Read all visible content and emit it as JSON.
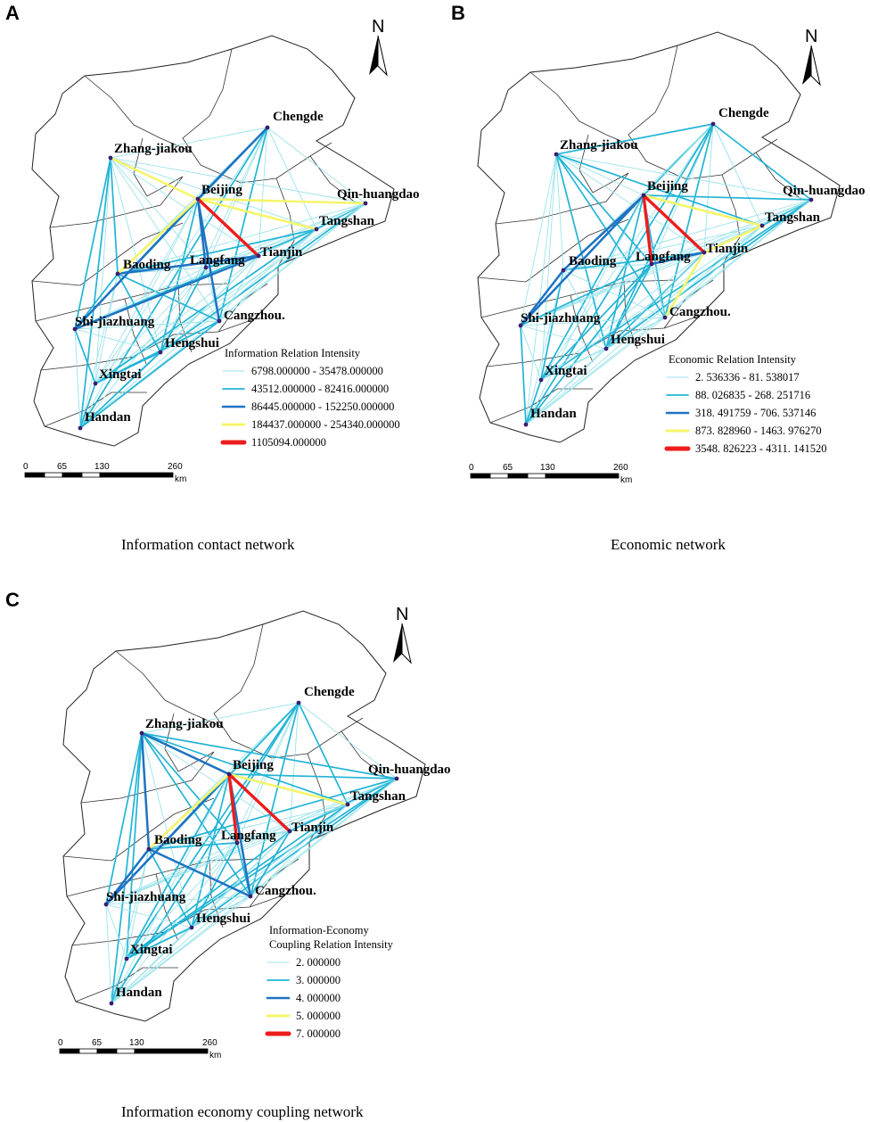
{
  "panels": [
    {
      "letter": "A",
      "caption": "Information contact network",
      "legend_title": [
        "Information Relation Intensity"
      ],
      "legend": [
        {
          "label": "6798.000000 - 35478.000000",
          "color": "#9be3ec"
        },
        {
          "label": "43512.000000 - 82416.000000",
          "color": "#22b4d6"
        },
        {
          "label": "86445.000000 - 152250.000000",
          "color": "#1f73c2"
        },
        {
          "label": "184437.000000 - 254340.000000",
          "color": "#f5f56a"
        },
        {
          "label": "1105094.000000",
          "color": "#ee1c1c"
        }
      ]
    },
    {
      "letter": "B",
      "caption": "Economic network",
      "legend_title": [
        "Economic  Relation Intensity"
      ],
      "legend": [
        {
          "label": "2. 536336  -  81. 538017",
          "color": "#9be3ec"
        },
        {
          "label": "88. 026835  -  268. 251716",
          "color": "#22b4d6"
        },
        {
          "label": "318. 491759  -  706. 537146",
          "color": "#1f73c2"
        },
        {
          "label": "873. 828960  -  1463. 976270",
          "color": "#f5f56a"
        },
        {
          "label": "3548. 826223  -  4311. 141520",
          "color": "#ee1c1c"
        }
      ]
    },
    {
      "letter": "C",
      "caption": "Information economy coupling network",
      "legend_title": [
        "Information-Economy",
        "Coupling Relation Intensity"
      ],
      "legend": [
        {
          "label": "2. 000000",
          "color": "#9be3ec"
        },
        {
          "label": "3. 000000",
          "color": "#22b4d6"
        },
        {
          "label": "4. 000000",
          "color": "#1f73c2"
        },
        {
          "label": "5. 000000",
          "color": "#f5f56a"
        },
        {
          "label": "7. 000000",
          "color": "#ee1c1c"
        }
      ]
    }
  ],
  "cities": [
    "Chengde",
    "Zhang-jiakou",
    "Beijing",
    "Qin-huangdao",
    "Tangshan",
    "Tianjin",
    "Baoding",
    "Langfang",
    "Shi-jiazhuang",
    "Cangzhou.",
    "Hengshui",
    "Xingtai",
    "Handan"
  ],
  "scale": {
    "ticks": [
      "0",
      "65",
      "130",
      "260"
    ],
    "unit": "km"
  },
  "north_label": "N",
  "links": [
    {
      "panel": 0,
      "from": "Beijing",
      "to": "Tianjin",
      "level": 5
    },
    {
      "panel": 0,
      "from": "Beijing",
      "to": "Zhang-jiakou",
      "level": 4
    },
    {
      "panel": 0,
      "from": "Beijing",
      "to": "Tangshan",
      "level": 4
    },
    {
      "panel": 0,
      "from": "Beijing",
      "to": "Baoding",
      "level": 4
    },
    {
      "panel": 0,
      "from": "Beijing",
      "to": "Qin-huangdao",
      "level": 4
    },
    {
      "panel": 0,
      "from": "Beijing",
      "to": "Shi-jiazhuang",
      "level": 3
    },
    {
      "panel": 0,
      "from": "Beijing",
      "to": "Chengde",
      "level": 3
    },
    {
      "panel": 0,
      "from": "Tianjin",
      "to": "Shi-jiazhuang",
      "level": 3
    },
    {
      "panel": 0,
      "from": "Beijing",
      "to": "Cangzhou.",
      "level": 3
    },
    {
      "panel": 0,
      "from": "Beijing",
      "to": "Langfang",
      "level": 3
    },
    {
      "panel": 0,
      "from": "Tianjin",
      "to": "Baoding",
      "level": 3
    },
    {
      "panel": 1,
      "from": "Beijing",
      "to": "Tianjin",
      "level": 5
    },
    {
      "panel": 1,
      "from": "Beijing",
      "to": "Langfang",
      "level": 5
    },
    {
      "panel": 1,
      "from": "Beijing",
      "to": "Tangshan",
      "level": 4
    },
    {
      "panel": 1,
      "from": "Tianjin",
      "to": "Tangshan",
      "level": 4
    },
    {
      "panel": 1,
      "from": "Tianjin",
      "to": "Cangzhou.",
      "level": 4
    },
    {
      "panel": 1,
      "from": "Beijing",
      "to": "Baoding",
      "level": 3
    },
    {
      "panel": 1,
      "from": "Beijing",
      "to": "Shi-jiazhuang",
      "level": 3
    },
    {
      "panel": 1,
      "from": "Baoding",
      "to": "Shi-jiazhuang",
      "level": 3
    },
    {
      "panel": 1,
      "from": "Tianjin",
      "to": "Langfang",
      "level": 3
    },
    {
      "panel": 2,
      "from": "Beijing",
      "to": "Tianjin",
      "level": 5
    },
    {
      "panel": 2,
      "from": "Beijing",
      "to": "Langfang",
      "level": 5
    },
    {
      "panel": 2,
      "from": "Beijing",
      "to": "Tangshan",
      "level": 4
    },
    {
      "panel": 2,
      "from": "Beijing",
      "to": "Baoding",
      "level": 4
    },
    {
      "panel": 2,
      "from": "Beijing",
      "to": "Zhang-jiakou",
      "level": 3
    },
    {
      "panel": 2,
      "from": "Beijing",
      "to": "Shi-jiazhuang",
      "level": 3
    },
    {
      "panel": 2,
      "from": "Baoding",
      "to": "Shi-jiazhuang",
      "level": 3
    },
    {
      "panel": 2,
      "from": "Zhang-jiakou",
      "to": "Baoding",
      "level": 3
    },
    {
      "panel": 2,
      "from": "Beijing",
      "to": "Cangzhou.",
      "level": 3
    },
    {
      "panel": 2,
      "from": "Baoding",
      "to": "Cangzhou.",
      "level": 3
    }
  ]
}
